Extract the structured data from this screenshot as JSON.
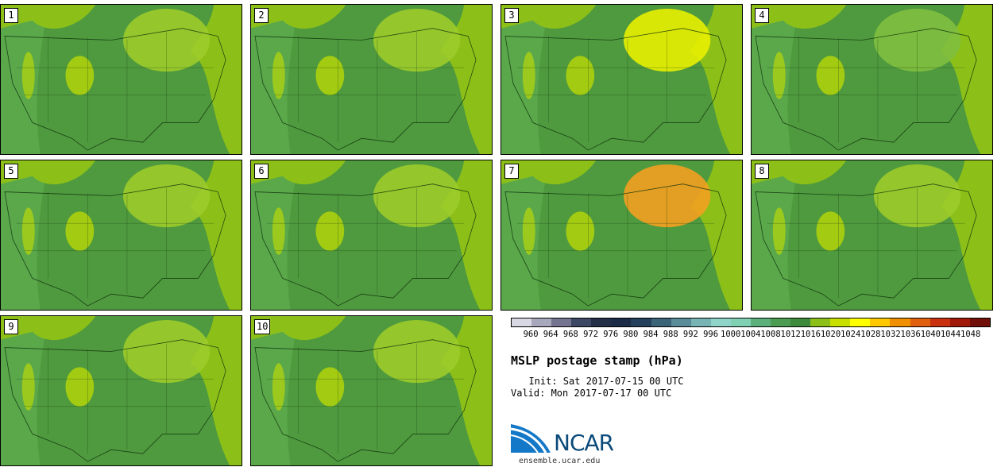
{
  "panels": [
    {
      "label": "1",
      "accent": "#9ccc2a"
    },
    {
      "label": "2",
      "accent": "#9ccc2a"
    },
    {
      "label": "3",
      "accent": "#e8f000"
    },
    {
      "label": "4",
      "accent": "#7fbf3f"
    },
    {
      "label": "5",
      "accent": "#9ccc2a"
    },
    {
      "label": "6",
      "accent": "#9ccc2a"
    },
    {
      "label": "7",
      "accent": "#f2a020"
    },
    {
      "label": "8",
      "accent": "#9ccc2a"
    },
    {
      "label": "9",
      "accent": "#9ccc2a"
    },
    {
      "label": "10",
      "accent": "#9ccc2a"
    }
  ],
  "colorbar": {
    "labels": [
      "960",
      "964",
      "968",
      "972",
      "976",
      "980",
      "984",
      "988",
      "992",
      "996",
      "1000",
      "1004",
      "1008",
      "1012",
      "1016",
      "1020",
      "1024",
      "1028",
      "1032",
      "1036",
      "1040",
      "1044",
      "1048"
    ],
    "colors": [
      "#d8d8e4",
      "#a8a8bc",
      "#747490",
      "#3c4864",
      "#243048",
      "#1c2c48",
      "#24405c",
      "#3c6478",
      "#5a8c9a",
      "#78b4b4",
      "#8ed4c8",
      "#80d0b4",
      "#5cb07c",
      "#4c9c54",
      "#3e8a3c",
      "#8cc018",
      "#c8e000",
      "#ffff00",
      "#ffc800",
      "#f09000",
      "#e06010",
      "#c83010",
      "#a01808",
      "#701008"
    ]
  },
  "title": "MSLP postage stamp (hPa)",
  "init": "  Init: Sat 2017-07-15 00 UTC",
  "valid": "Valid: Mon 2017-07-17 00 UTC",
  "logo_text": "NCAR",
  "site": "ensemble.ucar.edu"
}
